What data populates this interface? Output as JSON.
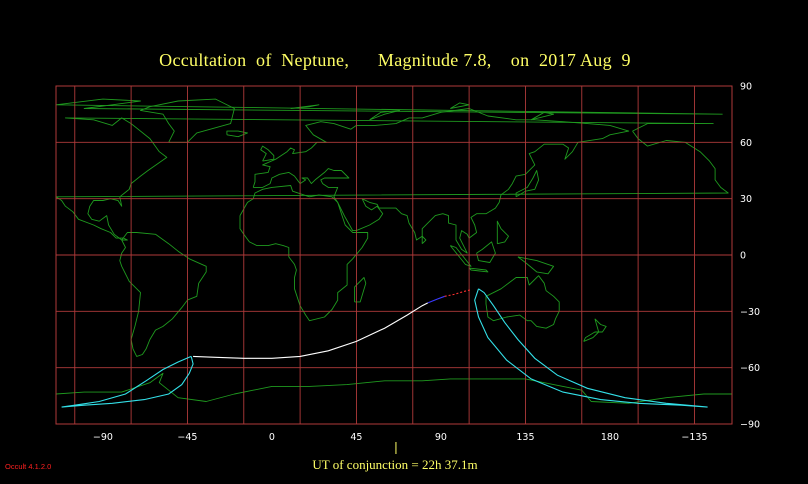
{
  "title": "Occultation  of  Neptune,      Magnitude 7.8,    on  2017 Aug  9",
  "map": {
    "projection": "equirectangular",
    "lon_min": -115,
    "lon_max": 245,
    "lat_min": -90,
    "lat_max": 90,
    "lat_ticks": [
      {
        "value": 90,
        "label": "90"
      },
      {
        "value": 60,
        "label": "60"
      },
      {
        "value": 30,
        "label": "30"
      },
      {
        "value": 0,
        "label": "0"
      },
      {
        "value": -30,
        "label": "−30"
      },
      {
        "value": -60,
        "label": "−60"
      },
      {
        "value": -90,
        "label": "−90"
      }
    ],
    "lon_ticks": [
      {
        "value": -90,
        "label": "−90"
      },
      {
        "value": -45,
        "label": "−45"
      },
      {
        "value": 0,
        "label": "0"
      },
      {
        "value": 45,
        "label": "45"
      },
      {
        "value": 90,
        "label": "90"
      },
      {
        "value": 135,
        "label": "135"
      },
      {
        "value": 180,
        "label": "180"
      },
      {
        "value": 225,
        "label": "−135"
      }
    ],
    "colors": {
      "grid": "#b03a3a",
      "coast": "#1f9a1f",
      "central_line": "#ffffff",
      "limit_lines": "#33e0e8",
      "central_line_blue": "#3a3aff",
      "central_line_red": "#ff3030",
      "conjunction_marker": "#ffff66"
    }
  },
  "central_line_white": [
    [
      -42,
      -54
    ],
    [
      -30,
      -54.5
    ],
    [
      -15,
      -55
    ],
    [
      0,
      -55
    ],
    [
      15,
      -54
    ],
    [
      30,
      -51
    ],
    [
      45,
      -46
    ],
    [
      60,
      -39
    ],
    [
      72,
      -32
    ],
    [
      80,
      -27
    ],
    [
      83,
      -25.5
    ]
  ],
  "central_line_blue": [
    [
      83,
      -25.5
    ],
    [
      88,
      -23.5
    ],
    [
      92,
      -22
    ]
  ],
  "central_line_red": [
    [
      92,
      -22
    ],
    [
      97,
      -21
    ],
    [
      102,
      -19.5
    ],
    [
      106,
      -18.5
    ]
  ],
  "west_limit_loop": [
    [
      -43,
      -54
    ],
    [
      -50,
      -57
    ],
    [
      -58,
      -61
    ],
    [
      -67,
      -67
    ],
    [
      -78,
      -74
    ],
    [
      -92,
      -78
    ],
    [
      -105,
      -80
    ],
    [
      -112,
      -81
    ],
    [
      -100,
      -80
    ],
    [
      -85,
      -79
    ],
    [
      -68,
      -77
    ],
    [
      -55,
      -74
    ],
    [
      -48,
      -69
    ],
    [
      -44,
      -63
    ],
    [
      -42,
      -58
    ],
    [
      -43,
      -54
    ]
  ],
  "east_limit_loop": [
    [
      110,
      -18
    ],
    [
      113,
      -20
    ],
    [
      118,
      -27
    ],
    [
      124,
      -36
    ],
    [
      131,
      -45
    ],
    [
      140,
      -55
    ],
    [
      152,
      -64
    ],
    [
      168,
      -71
    ],
    [
      188,
      -76
    ],
    [
      210,
      -79
    ],
    [
      232,
      -81
    ],
    [
      218,
      -80
    ],
    [
      195,
      -79
    ],
    [
      175,
      -77
    ],
    [
      155,
      -73
    ],
    [
      138,
      -66
    ],
    [
      125,
      -56
    ],
    [
      115,
      -44
    ],
    [
      110,
      -33
    ],
    [
      108,
      -24
    ],
    [
      110,
      -18
    ]
  ],
  "conjunction_lon": 90,
  "conjunction_label": "UT of conjunction = 22h 37.1m",
  "version_label": "Occult 4.1.2.0"
}
